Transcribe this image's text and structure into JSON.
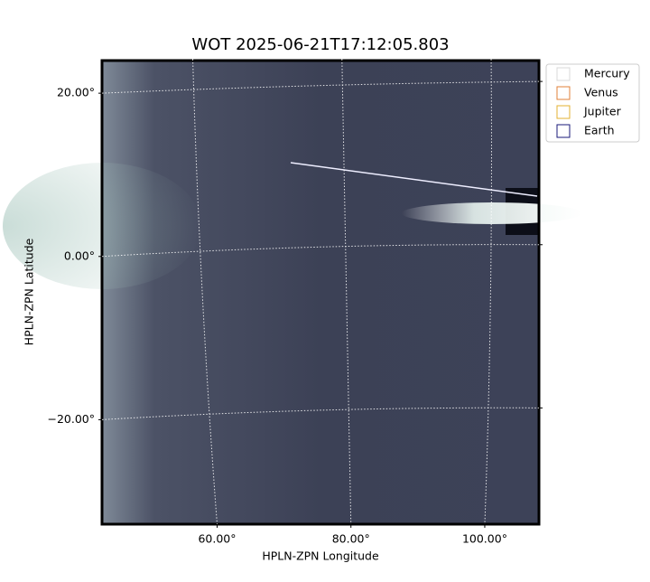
{
  "chart_data": {
    "type": "image",
    "title": "WOT 2025-06-21T17:12:05.803",
    "x_label": "HPLN-ZPN Longitude",
    "y_label": "HPLN-ZPN Latitude",
    "xlim": [
      42.8,
      108.1
    ],
    "ylim": [
      -32.8,
      24.0
    ],
    "xticks": [
      {
        "value": 60,
        "label": "60.00°"
      },
      {
        "value": 80,
        "label": "80.00°"
      },
      {
        "value": 100,
        "label": "100.00°"
      }
    ],
    "yticks": [
      {
        "value": -20,
        "label": "−20.00°"
      },
      {
        "value": 0,
        "label": "0.00°"
      },
      {
        "value": 20,
        "label": "20.00°"
      }
    ],
    "grid": true,
    "legend_position": "outside-upper-right",
    "legend": [
      {
        "name": "Mercury",
        "color": "#d8d8d8"
      },
      {
        "name": "Venus",
        "color": "#e0803a"
      },
      {
        "name": "Jupiter",
        "color": "#e3b032"
      },
      {
        "name": "Earth",
        "color": "#1a1a7a"
      }
    ]
  }
}
